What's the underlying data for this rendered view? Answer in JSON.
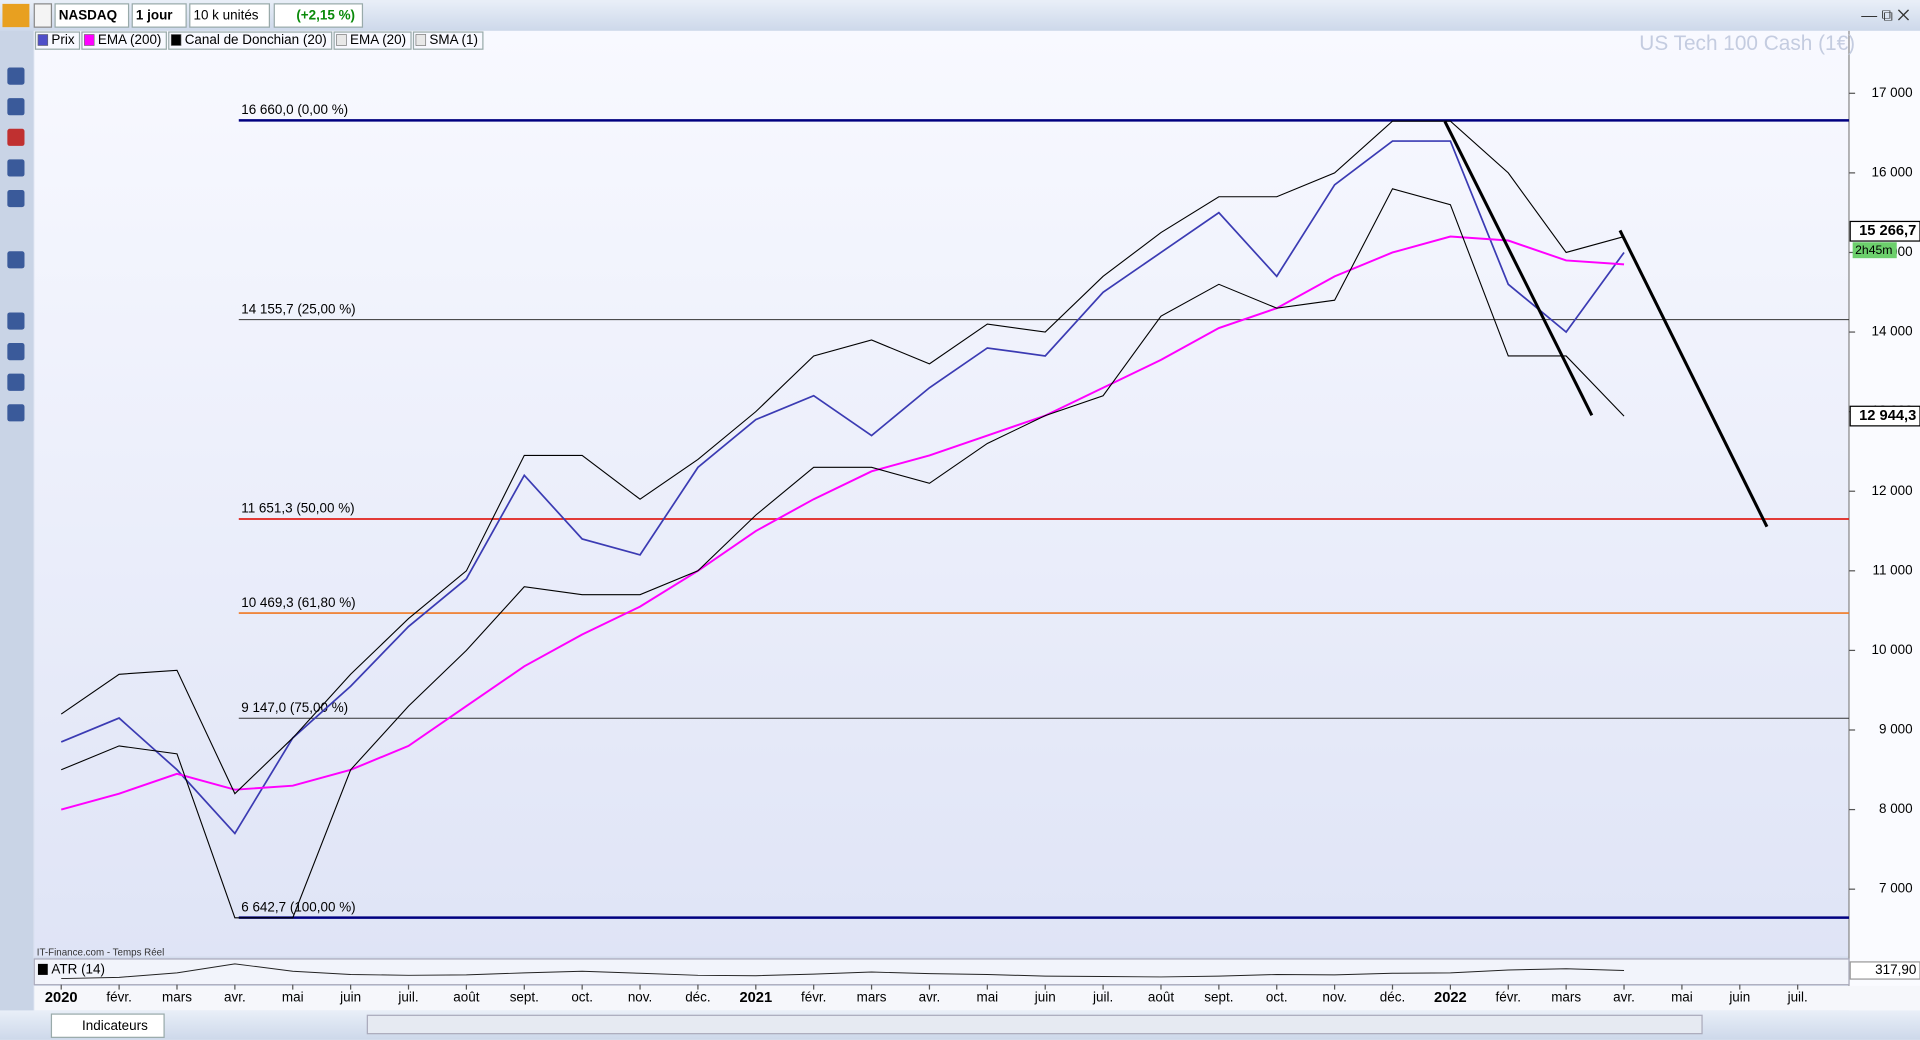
{
  "toolbar": {
    "symbol": "NASDAQ",
    "period": "1 jour",
    "units": "10 k unités",
    "change": "(+2,15 %)",
    "indicators": "Indicateurs"
  },
  "chart_data": {
    "type": "line",
    "watermark": "US Tech 100 Cash (1€)",
    "source": "IT-Finance.com - Temps Réel",
    "legend": [
      {
        "name": "Prix",
        "color": "#4f4fc8"
      },
      {
        "name": "EMA (200)",
        "color": "#ff00ff"
      },
      {
        "name": "Canal de Donchian (20)",
        "color": "#000000"
      },
      {
        "name": "EMA (20)",
        "color": "#e8e8e8"
      },
      {
        "name": "SMA (1)",
        "color": "#e8e8e8"
      }
    ],
    "categories": [
      "2020",
      "févr.",
      "mars",
      "avr.",
      "mai",
      "juin",
      "juil.",
      "août",
      "sept.",
      "oct.",
      "nov.",
      "déc.",
      "2021",
      "févr.",
      "mars",
      "avr.",
      "mai",
      "juin",
      "juil.",
      "août",
      "sept.",
      "oct.",
      "nov.",
      "déc.",
      "2022",
      "févr.",
      "mars",
      "avr.",
      "mai",
      "juin",
      "juil."
    ],
    "series": [
      {
        "name": "Prix",
        "color": "#3b3bb3",
        "values": [
          8850,
          9150,
          8500,
          7700,
          8900,
          9550,
          10300,
          10900,
          12200,
          11400,
          11200,
          12300,
          12900,
          13200,
          12700,
          13300,
          13800,
          13700,
          14500,
          15000,
          15500,
          14700,
          15850,
          16400,
          16400,
          14600,
          14000,
          15000,
          null,
          null,
          null
        ]
      },
      {
        "name": "EMA (200)",
        "color": "#ff00ff",
        "values": [
          8000,
          8200,
          8450,
          8250,
          8300,
          8500,
          8800,
          9300,
          9800,
          10200,
          10550,
          11000,
          11500,
          11900,
          12250,
          12450,
          12700,
          12950,
          13300,
          13650,
          14050,
          14300,
          14700,
          15000,
          15200,
          15150,
          14900,
          14850,
          null,
          null,
          null
        ]
      },
      {
        "name": "Canal de Donchian (20)",
        "color": "#000000",
        "values": [
          9200,
          9700,
          9750,
          8200,
          8900,
          9700,
          10400,
          11000,
          12450,
          12450,
          11900,
          12400,
          13000,
          13700,
          13900,
          13600,
          14100,
          14000,
          14700,
          15250,
          15700,
          15700,
          16000,
          16650,
          16650,
          16000,
          15000,
          15200,
          null,
          null,
          null
        ]
      },
      {
        "name": "Canal de Donchian (20)",
        "color": "#000000",
        "values": [
          8500,
          8800,
          8700,
          6640,
          6640,
          8500,
          9300,
          10000,
          10800,
          10700,
          10700,
          11000,
          11700,
          12300,
          12300,
          12100,
          12600,
          12950,
          13200,
          14200,
          14600,
          14300,
          14400,
          15800,
          15600,
          13700,
          13700,
          12944,
          null,
          null,
          null
        ]
      }
    ],
    "ylim": [
      6169,
      17785
    ],
    "yticks": [
      {
        "value": 7000,
        "label": "7 000"
      },
      {
        "value": 8000,
        "label": "8 000"
      },
      {
        "value": 9000,
        "label": "9 000"
      },
      {
        "value": 10000,
        "label": "10 000"
      },
      {
        "value": 11000,
        "label": "11 000"
      },
      {
        "value": 12000,
        "label": "12 000"
      },
      {
        "value": 13000,
        "label": "13 000"
      },
      {
        "value": 14000,
        "label": "14 000"
      },
      {
        "value": 15000,
        "label": "15 000"
      },
      {
        "value": 16000,
        "label": "16 000"
      },
      {
        "value": 17000,
        "label": "17 000"
      }
    ],
    "fibonacci": [
      {
        "value": 16660,
        "label": "16 660,0 (0,00 %)",
        "color": "#000080"
      },
      {
        "value": 14155.7,
        "label": "14 155,7 (25,00 %)",
        "color": "#333333"
      },
      {
        "value": 11651.3,
        "label": "11 651,3 (50,00 %)",
        "color": "#e0201a"
      },
      {
        "value": 10469.3,
        "label": "10 469,3 (61,80 %)",
        "color": "#f07820"
      },
      {
        "value": 9147,
        "label": "9 147,0 (75,00 %)",
        "color": "#333333"
      },
      {
        "value": 6642.7,
        "label": "6 642,7 (100,00 %)",
        "color": "#000080"
      }
    ],
    "price_labels": [
      {
        "value": 15266.7,
        "label": "15 266,7"
      },
      {
        "value": 12944.3,
        "label": "12 944,3"
      }
    ],
    "countdown": "2h45m",
    "atr": {
      "name": "ATR (14)",
      "ylim": [
        0,
        600
      ],
      "values": [
        120,
        150,
        260,
        480,
        300,
        220,
        200,
        210,
        260,
        300,
        250,
        200,
        190,
        230,
        280,
        240,
        220,
        180,
        170,
        160,
        180,
        220,
        210,
        250,
        260,
        330,
        360,
        318,
        null,
        null,
        null
      ],
      "last": {
        "value": 317.9,
        "label": "317,90"
      }
    }
  }
}
